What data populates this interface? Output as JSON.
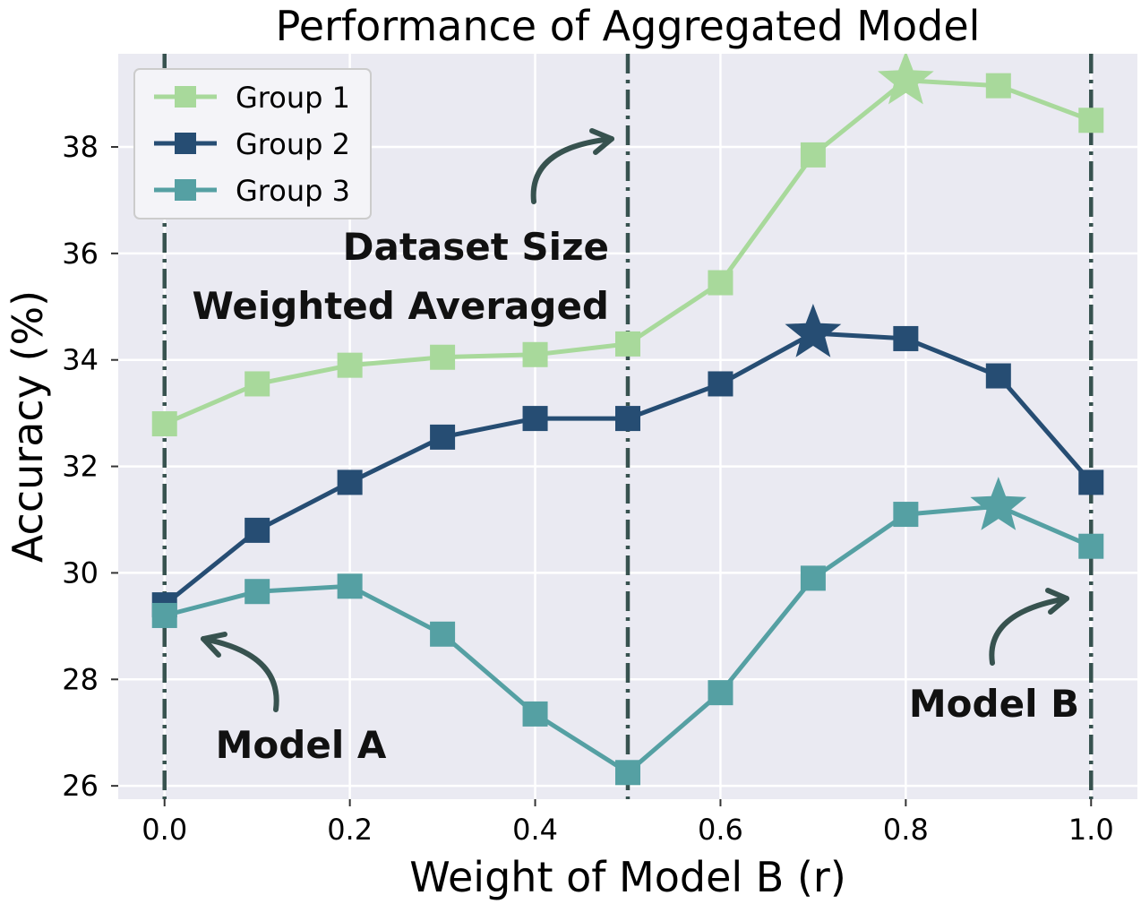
{
  "chart_data": {
    "type": "line",
    "title": "Performance of Aggregated Model",
    "xlabel": "Weight of Model B (r)",
    "ylabel": "Accuracy (%)",
    "xlim": [
      -0.05,
      1.05
    ],
    "ylim": [
      25.75,
      39.75
    ],
    "xticks": [
      0.0,
      0.2,
      0.4,
      0.6,
      0.8,
      1.0
    ],
    "xtick_labels": [
      "0.0",
      "0.2",
      "0.4",
      "0.6",
      "0.8",
      "1.0"
    ],
    "yticks": [
      26,
      28,
      30,
      32,
      34,
      36,
      38
    ],
    "ytick_labels": [
      "26",
      "28",
      "30",
      "32",
      "34",
      "36",
      "38"
    ],
    "grid": true,
    "legend_position": "top-left",
    "x": [
      0.0,
      0.1,
      0.2,
      0.3,
      0.4,
      0.5,
      0.6,
      0.7,
      0.8,
      0.9,
      1.0
    ],
    "series": [
      {
        "name": "Group 1",
        "color": "#a8d99b",
        "values": [
          32.8,
          33.55,
          33.9,
          34.05,
          34.1,
          34.3,
          35.45,
          37.85,
          39.25,
          39.15,
          38.5
        ],
        "best_index": 8
      },
      {
        "name": "Group 2",
        "color": "#264d73",
        "values": [
          29.4,
          30.8,
          31.7,
          32.55,
          32.9,
          32.9,
          33.55,
          34.5,
          34.4,
          33.7,
          31.7
        ],
        "best_index": 7
      },
      {
        "name": "Group 3",
        "color": "#55a0a3",
        "values": [
          29.2,
          29.65,
          29.75,
          28.85,
          27.35,
          26.25,
          27.75,
          29.9,
          31.1,
          31.25,
          30.5
        ],
        "best_index": 9
      }
    ],
    "vlines": [
      0.0,
      0.5,
      1.0
    ],
    "annotations": [
      {
        "text": "Dataset Size"
      },
      {
        "text": "Weighted Averaged"
      },
      {
        "text": "Model A"
      },
      {
        "text": "Model B"
      }
    ]
  }
}
